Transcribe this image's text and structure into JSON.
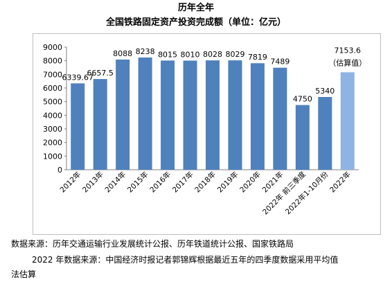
{
  "chart_data": {
    "type": "bar",
    "title": "历年全年",
    "subtitle": "全国铁路固定资产投资完成额（单位：亿元）",
    "categories": [
      "2012年",
      "2013年",
      "2014年",
      "2015年",
      "2016年",
      "2017年",
      "2018年",
      "2019年",
      "2020年",
      "2021年",
      "2022年 前三季度",
      "2022年1-10月份",
      "2022年"
    ],
    "values": [
      6339.67,
      6657.5,
      8088,
      8238,
      8015,
      8010,
      8028,
      8029,
      7819,
      7489,
      4750,
      5340,
      7153.6
    ],
    "value_labels": [
      "6339.67",
      "6657.5",
      "8088",
      "8238",
      "8015",
      "8010",
      "8028",
      "8029",
      "7819",
      "7489",
      "4750",
      "5340",
      "7153.6"
    ],
    "estimate_label": "（估算值）",
    "y_ticks": [
      "0",
      "1000",
      "2000",
      "3000",
      "4000",
      "5000",
      "6000",
      "7000",
      "8000",
      "9000"
    ],
    "ylim": [
      0,
      9000
    ],
    "xlabel": "",
    "ylabel": "",
    "grid": false,
    "legend": "none",
    "bar_color": "#4f81bd",
    "highlight_color": "#8fb4e3",
    "highlight_index": 12
  },
  "footnotes": {
    "line1": "数据来源：历年交通运输行业发展统计公报、历年铁道统计公报、国家铁路局",
    "line2": "2022 年数据来源：中国经济时报记者郭锦辉根据最近五年的四季度数据采用平均值",
    "line3": "法估算"
  }
}
